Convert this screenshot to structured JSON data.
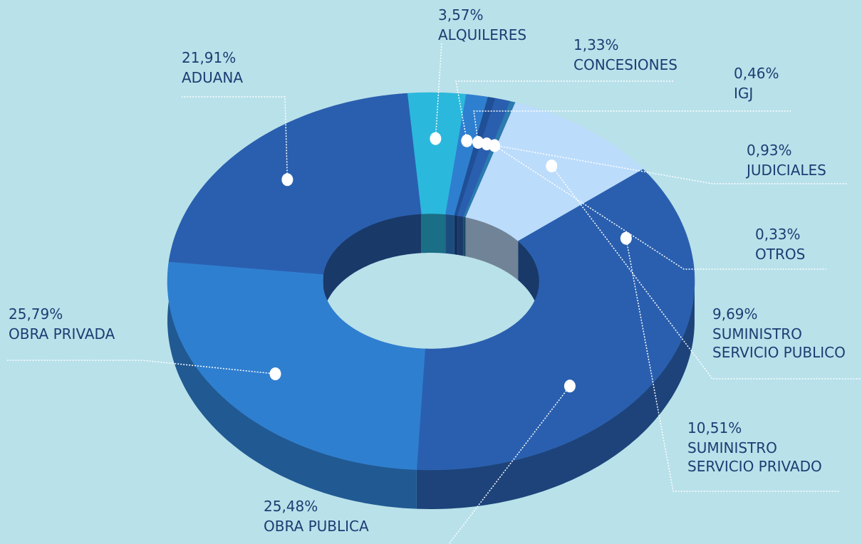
{
  "chart_data": {
    "type": "pie",
    "donut": true,
    "categories": [
      "ALQUILERES",
      "CONCESIONES",
      "IGJ",
      "JUDICIALES",
      "OTROS",
      "SUMINISTRO\nSERVICIO PUBLICO",
      "SUMINISTRO\nSERVICIO PRIVADO",
      "OBRA PUBLICA",
      "OBRA PRIVADA",
      "ADUANA"
    ],
    "values": [
      3.57,
      1.33,
      0.46,
      0.93,
      0.33,
      9.69,
      10.51,
      25.48,
      25.79,
      21.91
    ],
    "value_labels": [
      "3,57%",
      "1,33%",
      "0,46%",
      "0,93%",
      "0,33%",
      "9,69%",
      "10,51%",
      "25,48%",
      "25,79%",
      "21,91%"
    ],
    "colors": [
      "#2bb8dd",
      "#2f7fd0",
      "#1f4f96",
      "#2a5faf",
      "#2b7ab0",
      "#bcdcfb",
      "#2a5faf",
      "#2a5faf",
      "#2f7fd0",
      "#2a5faf"
    ]
  }
}
